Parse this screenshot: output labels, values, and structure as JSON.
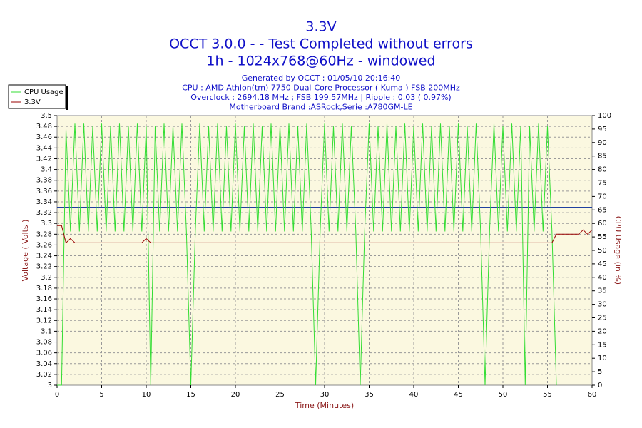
{
  "chart_data": {
    "type": "line",
    "title": [
      "3.3V",
      "OCCT 3.0.0 -  - Test Completed without errors",
      "1h - 1024x768@60Hz - windowed"
    ],
    "subtitle": [
      "Generated by OCCT : 01/05/10 20:16:40",
      "CPU : AMD Athlon(tm) 7750 Dual-Core Processor ( Kuma ) FSB 200MHz",
      "Overclock : 2694.18 MHz ; FSB 199.57MHz | Ripple : 0.03 ( 0.97%)",
      "Motherboard Brand :ASRock,Serie :A780GM-LE"
    ],
    "xlabel": "Time (Minutes)",
    "ylabel": "Voltage ( Volts )",
    "y2label": "CPU Usage (in %)",
    "x": [
      0,
      0.5,
      1,
      1.5,
      2,
      2.5,
      3,
      3.5,
      4,
      4.5,
      5,
      5.5,
      6,
      6.5,
      7,
      7.5,
      8,
      8.5,
      9,
      9.5,
      10,
      10.5,
      11,
      11.5,
      12,
      12.5,
      13,
      13.5,
      14,
      14.5,
      15,
      15.5,
      16,
      16.5,
      17,
      17.5,
      18,
      18.5,
      19,
      19.5,
      20,
      20.5,
      21,
      21.5,
      22,
      22.5,
      23,
      23.5,
      24,
      24.5,
      25,
      25.5,
      26,
      26.5,
      27,
      27.5,
      28,
      28.5,
      29,
      29.5,
      30,
      30.5,
      31,
      31.5,
      32,
      32.5,
      33,
      33.5,
      34,
      34.5,
      35,
      35.5,
      36,
      36.5,
      37,
      37.5,
      38,
      38.5,
      39,
      39.5,
      40,
      40.5,
      41,
      41.5,
      42,
      42.5,
      43,
      43.5,
      44,
      44.5,
      45,
      45.5,
      46,
      46.5,
      47,
      47.5,
      48,
      48.5,
      49,
      49.5,
      50,
      50.5,
      51,
      51.5,
      52,
      52.5,
      53,
      53.5,
      54,
      54.5,
      55,
      55.5,
      56,
      56.5,
      57,
      57.5,
      58,
      58.5,
      59,
      59.5,
      60
    ],
    "series": [
      {
        "name": "CPU Usage",
        "color": "#33dd33",
        "axis": "y2",
        "values": [
          0,
          0,
          95,
          57,
          97,
          57,
          97,
          57,
          96,
          57,
          97,
          57,
          96,
          57,
          97,
          57,
          96,
          57,
          97,
          57,
          96,
          0,
          96,
          57,
          97,
          57,
          96,
          57,
          97,
          57,
          0,
          57,
          97,
          57,
          96,
          57,
          97,
          57,
          96,
          57,
          97,
          57,
          96,
          57,
          97,
          57,
          96,
          57,
          97,
          57,
          96,
          57,
          97,
          57,
          96,
          57,
          97,
          57,
          0,
          57,
          97,
          57,
          96,
          57,
          97,
          57,
          96,
          57,
          0,
          57,
          97,
          57,
          96,
          57,
          97,
          57,
          96,
          57,
          97,
          57,
          96,
          57,
          97,
          57,
          96,
          57,
          97,
          57,
          96,
          57,
          97,
          57,
          96,
          57,
          97,
          57,
          0,
          57,
          97,
          57,
          96,
          57,
          97,
          57,
          96,
          0,
          96,
          57,
          97,
          57,
          96,
          57,
          0,
          null,
          null,
          null,
          null,
          null,
          null,
          null,
          null
        ]
      },
      {
        "name": "3.3V",
        "color": "#990000",
        "values": [
          3.296,
          3.296,
          3.264,
          3.272,
          3.264,
          3.264,
          3.264,
          3.264,
          3.264,
          3.264,
          3.264,
          3.264,
          3.264,
          3.264,
          3.264,
          3.264,
          3.264,
          3.264,
          3.264,
          3.264,
          3.272,
          3.264,
          3.264,
          3.264,
          3.264,
          3.264,
          3.264,
          3.264,
          3.264,
          3.264,
          3.264,
          3.264,
          3.264,
          3.264,
          3.264,
          3.264,
          3.264,
          3.264,
          3.264,
          3.264,
          3.264,
          3.264,
          3.264,
          3.264,
          3.264,
          3.264,
          3.264,
          3.264,
          3.264,
          3.264,
          3.264,
          3.264,
          3.264,
          3.264,
          3.264,
          3.264,
          3.264,
          3.264,
          3.264,
          3.264,
          3.264,
          3.264,
          3.264,
          3.264,
          3.264,
          3.264,
          3.264,
          3.264,
          3.264,
          3.264,
          3.264,
          3.264,
          3.264,
          3.264,
          3.264,
          3.264,
          3.264,
          3.264,
          3.264,
          3.264,
          3.264,
          3.264,
          3.264,
          3.264,
          3.264,
          3.264,
          3.264,
          3.264,
          3.264,
          3.264,
          3.264,
          3.264,
          3.264,
          3.264,
          3.264,
          3.264,
          3.264,
          3.264,
          3.264,
          3.264,
          3.264,
          3.264,
          3.264,
          3.264,
          3.264,
          3.264,
          3.264,
          3.264,
          3.264,
          3.264,
          3.264,
          3.264,
          3.28,
          3.28,
          3.28,
          3.28,
          3.28,
          3.28,
          3.288,
          3.28,
          3.288
        ]
      }
    ],
    "reference_line": {
      "value": 3.33,
      "color": "#1f3f9f"
    },
    "xlim": [
      0,
      60
    ],
    "xticks": [
      0,
      5,
      10,
      15,
      20,
      25,
      30,
      35,
      40,
      45,
      50,
      55,
      60
    ],
    "ylim": [
      3,
      3.5
    ],
    "yticks": [
      3,
      3.02,
      3.04,
      3.06,
      3.08,
      3.1,
      3.12,
      3.14,
      3.16,
      3.18,
      3.2,
      3.22,
      3.24,
      3.26,
      3.28,
      3.3,
      3.32,
      3.34,
      3.36,
      3.38,
      3.4,
      3.42,
      3.44,
      3.46,
      3.48,
      3.5
    ],
    "y2lim": [
      0,
      100
    ],
    "y2ticks": [
      0,
      5,
      10,
      15,
      20,
      25,
      30,
      35,
      40,
      45,
      50,
      55,
      60,
      65,
      70,
      75,
      80,
      85,
      90,
      95,
      100
    ],
    "grid": true,
    "legend": "top-left"
  }
}
